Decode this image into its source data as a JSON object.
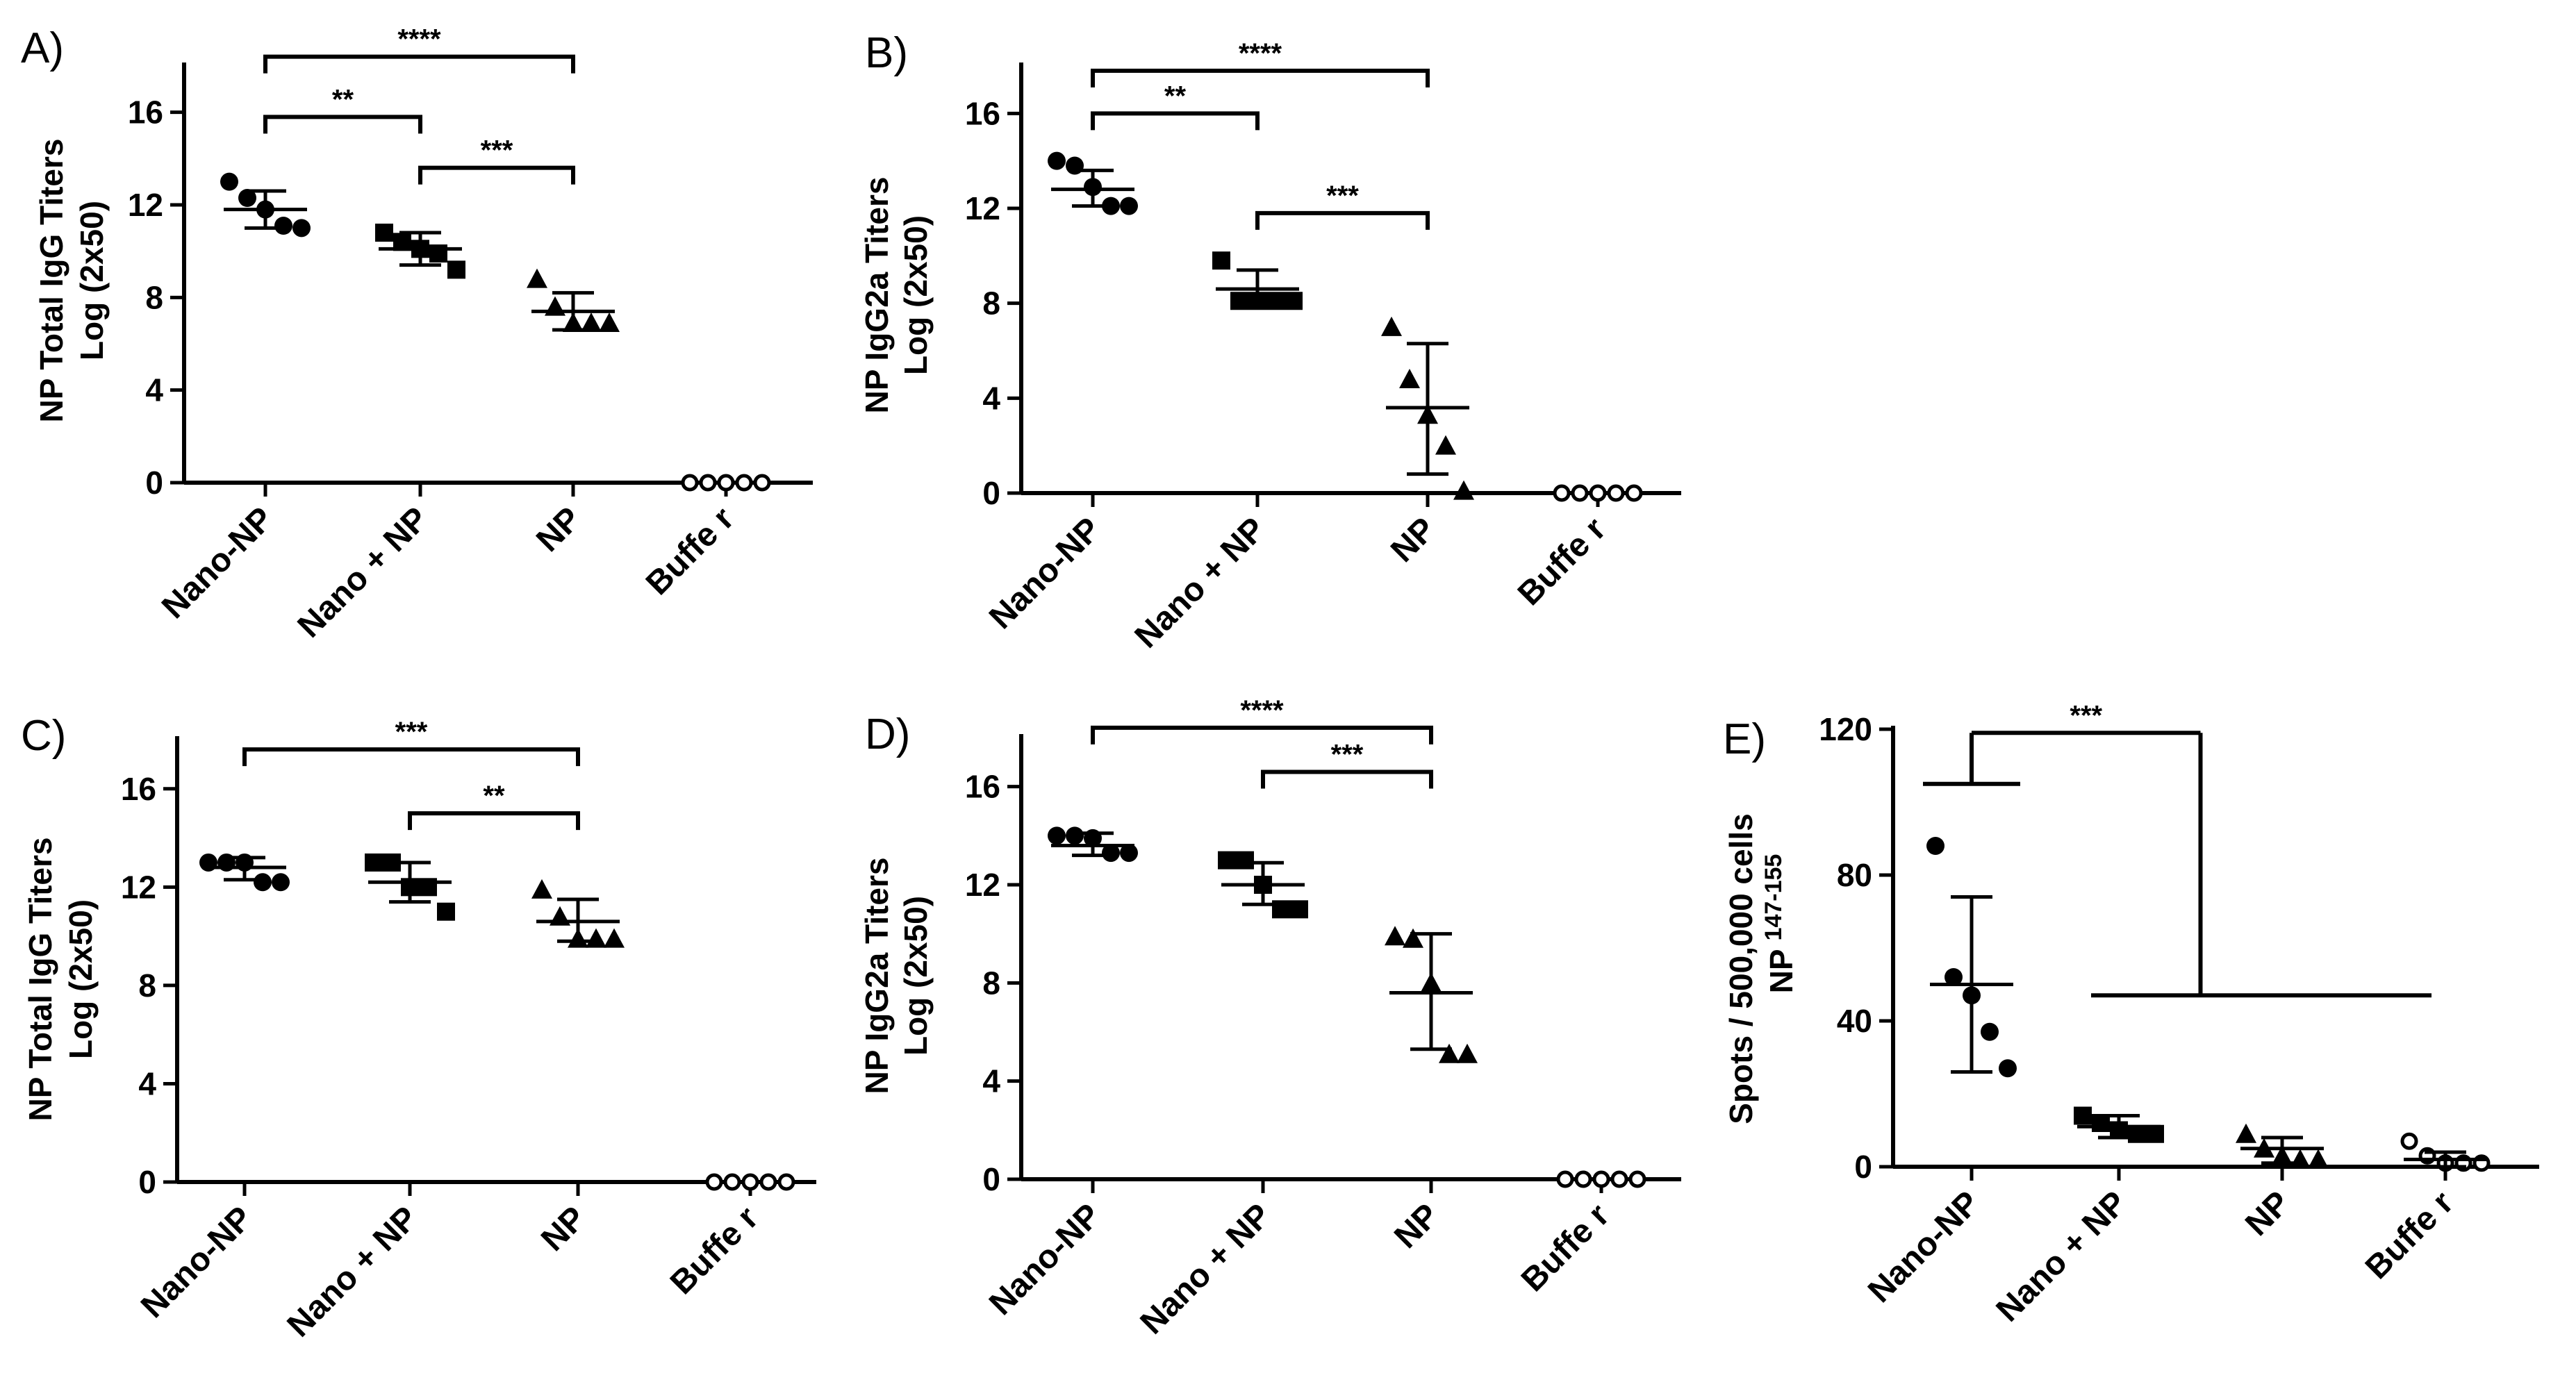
{
  "chart_data": [
    {
      "panel": "A)",
      "type": "scatter",
      "title": "",
      "ylabel": [
        "NP Total  IgG Titers",
        "Log (2x50)"
      ],
      "xlabel": "",
      "categories": [
        "Nano-NP",
        "Nano + NP",
        "NP",
        "Buffe r"
      ],
      "ylim": [
        0,
        18
      ],
      "yticks": [
        "0",
        "4",
        "8",
        "12",
        "16"
      ],
      "marker_shapes": [
        "circle",
        "square",
        "triangle",
        "open-circle"
      ],
      "points": [
        [
          13.0,
          12.3,
          11.8,
          11.1,
          11.0
        ],
        [
          10.8,
          10.4,
          10.1,
          9.9,
          9.2
        ],
        [
          8.8,
          7.6,
          6.9,
          6.9,
          6.9
        ],
        [
          0,
          0,
          0,
          0,
          0
        ]
      ],
      "mean": [
        11.8,
        10.1,
        7.4,
        null
      ],
      "sd_low": [
        11.0,
        9.4,
        6.6,
        null
      ],
      "sd_high": [
        12.6,
        10.8,
        8.2,
        null
      ],
      "comparisons": [
        {
          "from": "Nano-NP",
          "to": "NP",
          "label": "****",
          "y": 18.4
        },
        {
          "from": "Nano-NP",
          "to": "Nano + NP",
          "label": "**",
          "y": 15.8
        },
        {
          "from": "Nano + NP",
          "to": "NP",
          "label": "***",
          "y": 13.6
        }
      ]
    },
    {
      "panel": "B)",
      "type": "scatter",
      "title": "",
      "ylabel": [
        "NP IgG2a Titers",
        "Log (2x50)"
      ],
      "xlabel": "",
      "categories": [
        "Nano-NP",
        "Nano + NP",
        "NP",
        "Buffe r"
      ],
      "ylim": [
        0,
        18
      ],
      "yticks": [
        "0",
        "4",
        "8",
        "12",
        "16"
      ],
      "marker_shapes": [
        "circle",
        "square",
        "triangle",
        "open-circle"
      ],
      "points": [
        [
          14.0,
          13.8,
          12.9,
          12.1,
          12.1
        ],
        [
          9.8,
          8.1,
          8.1,
          8.1,
          8.1
        ],
        [
          7.0,
          4.8,
          3.3,
          2.0,
          0.1
        ],
        [
          0,
          0,
          0,
          0,
          0
        ]
      ],
      "mean": [
        12.8,
        8.6,
        3.6,
        null
      ],
      "sd_low": [
        12.1,
        7.8,
        0.8,
        null
      ],
      "sd_high": [
        13.6,
        9.4,
        6.3,
        null
      ],
      "comparisons": [
        {
          "from": "Nano-NP",
          "to": "NP",
          "label": "****",
          "y": 17.8
        },
        {
          "from": "Nano-NP",
          "to": "Nano + NP",
          "label": "**",
          "y": 16.0
        },
        {
          "from": "Nano + NP",
          "to": "NP",
          "label": "***",
          "y": 11.8
        }
      ]
    },
    {
      "panel": "C)",
      "type": "scatter",
      "title": "",
      "ylabel": [
        "NP Total  IgG Titers",
        "Log (2x50)"
      ],
      "xlabel": "",
      "categories": [
        "Nano-NP",
        "Nano + NP",
        "NP",
        "Buffe r"
      ],
      "ylim": [
        0,
        18
      ],
      "yticks": [
        "0",
        "4",
        "8",
        "12",
        "16"
      ],
      "marker_shapes": [
        "circle",
        "square",
        "triangle",
        "open-circle"
      ],
      "points": [
        [
          13.0,
          13.0,
          13.0,
          12.2,
          12.2
        ],
        [
          13.0,
          13.0,
          12.0,
          12.0,
          11.0
        ],
        [
          11.9,
          10.8,
          9.9,
          9.9,
          9.9
        ],
        [
          0,
          0,
          0,
          0,
          0
        ]
      ],
      "mean": [
        12.8,
        12.2,
        10.6,
        null
      ],
      "sd_low": [
        12.3,
        11.4,
        9.8,
        null
      ],
      "sd_high": [
        13.2,
        13.0,
        11.5,
        null
      ],
      "comparisons": [
        {
          "from": "Nano-NP",
          "to": "NP",
          "label": "***",
          "y": 17.6
        },
        {
          "from": "Nano + NP",
          "to": "NP",
          "label": "**",
          "y": 15.0
        }
      ]
    },
    {
      "panel": "D)",
      "type": "scatter",
      "title": "",
      "ylabel": [
        "NP IgG2a Titers",
        "Log (2x50)"
      ],
      "xlabel": "",
      "categories": [
        "Nano-NP",
        "Nano + NP",
        "NP",
        "Buffe r"
      ],
      "ylim": [
        0,
        18
      ],
      "yticks": [
        "0",
        "4",
        "8",
        "12",
        "16"
      ],
      "marker_shapes": [
        "circle",
        "square",
        "triangle",
        "open-circle"
      ],
      "points": [
        [
          14.0,
          14.0,
          13.9,
          13.3,
          13.3
        ],
        [
          13.0,
          13.0,
          12.0,
          11.0,
          11.0
        ],
        [
          9.9,
          9.8,
          8.0,
          5.1,
          5.1
        ],
        [
          0,
          0,
          0,
          0,
          0
        ]
      ],
      "mean": [
        13.6,
        12.0,
        7.6,
        null
      ],
      "sd_low": [
        13.2,
        11.2,
        5.3,
        null
      ],
      "sd_high": [
        14.1,
        12.9,
        10.0,
        null
      ],
      "comparisons": [
        {
          "from": "Nano-NP",
          "to": "NP",
          "label": "****",
          "y": 18.4
        },
        {
          "from": "Nano + NP",
          "to": "NP",
          "label": "***",
          "y": 16.6
        }
      ]
    },
    {
      "panel": "E)",
      "type": "scatter",
      "title": "",
      "ylabel": [
        "Spots / 500,000 cells",
        "NP"
      ],
      "ylabel_superscript": "147-155",
      "xlabel": "",
      "categories": [
        "Nano-NP",
        "Nano + NP",
        "NP",
        "Buffe r"
      ],
      "ylim": [
        0,
        120
      ],
      "yticks": [
        "0",
        "40",
        "80",
        "120"
      ],
      "marker_shapes": [
        "circle",
        "square",
        "triangle",
        "open-circle"
      ],
      "points": [
        [
          88,
          52,
          47,
          37,
          27
        ],
        [
          14,
          12,
          10,
          9,
          9
        ],
        [
          9,
          5,
          3,
          2,
          2
        ],
        [
          7,
          3,
          1,
          1,
          1
        ]
      ],
      "mean": [
        50,
        11,
        5,
        2
      ],
      "sd_low": [
        26,
        8,
        1,
        0
      ],
      "sd_high": [
        74,
        14,
        8,
        4
      ],
      "comparisons": [
        {
          "label": "***",
          "y_top": 119,
          "from_y": 105,
          "to_y": 47
        }
      ]
    }
  ]
}
